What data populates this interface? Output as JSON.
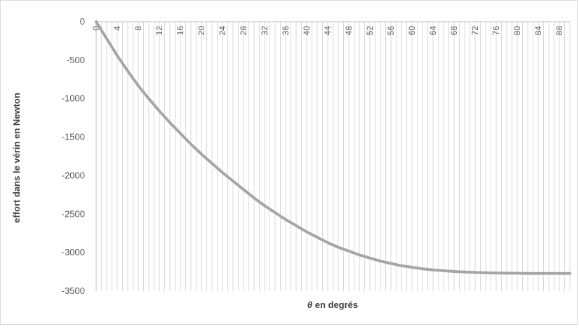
{
  "chart_data": {
    "type": "line",
    "title": "",
    "xlabel_symbol": "θ",
    "xlabel_text": " en degrés",
    "ylabel": "effort dans le vérin en Newton",
    "xlim": [
      0,
      90
    ],
    "ylim": [
      -3500,
      0
    ],
    "y_ticks": [
      0,
      -500,
      -1000,
      -1500,
      -2000,
      -2500,
      -3000,
      -3500
    ],
    "y_tick_labels": [
      "0",
      "-500",
      "-1000",
      "-1500",
      "-2000",
      "-2500",
      "-3000",
      "-3500"
    ],
    "x_tick_labels": [
      "0",
      "4",
      "8",
      "12",
      "16",
      "20",
      "24",
      "28",
      "32",
      "36",
      "40",
      "44",
      "48",
      "52",
      "56",
      "60",
      "64",
      "68",
      "72",
      "76",
      "80",
      "84",
      "88"
    ],
    "x_axis_position": "top",
    "grid": "vertical",
    "legend": "none",
    "series": [
      {
        "color": "#a6a6a6",
        "x": [
          0,
          2,
          4,
          6,
          8,
          10,
          12,
          14,
          16,
          18,
          20,
          22,
          24,
          26,
          28,
          30,
          32,
          34,
          36,
          38,
          40,
          42,
          44,
          46,
          48,
          50,
          52,
          54,
          56,
          58,
          60,
          62,
          64,
          66,
          68,
          70,
          72,
          74,
          76,
          78,
          80,
          82,
          84,
          86,
          88,
          90
        ],
        "values": [
          0,
          -220,
          -440,
          -640,
          -830,
          -1000,
          -1160,
          -1310,
          -1450,
          -1590,
          -1720,
          -1840,
          -1960,
          -2070,
          -2180,
          -2290,
          -2390,
          -2480,
          -2570,
          -2650,
          -2730,
          -2800,
          -2870,
          -2930,
          -2980,
          -3030,
          -3070,
          -3110,
          -3140,
          -3170,
          -3190,
          -3210,
          -3225,
          -3235,
          -3245,
          -3252,
          -3258,
          -3262,
          -3265,
          -3267,
          -3268,
          -3269,
          -3270,
          -3270,
          -3270,
          -3270
        ]
      }
    ]
  }
}
